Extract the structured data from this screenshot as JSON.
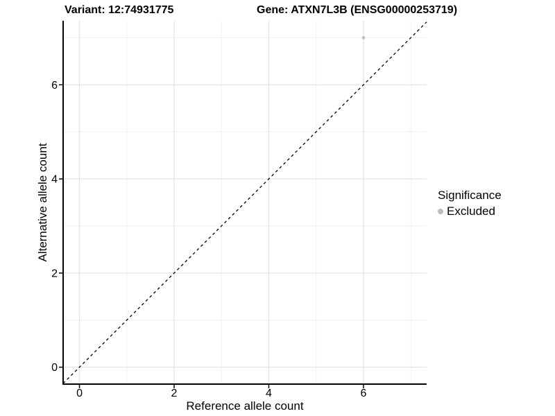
{
  "titles": {
    "left": "Variant: 12:74931775",
    "right": "Gene: ATXN7L3B (ENSG00000253719)"
  },
  "axes": {
    "x_label": "Reference allele count",
    "y_label": "Alternative allele count"
  },
  "legend": {
    "title": "Significance",
    "entries": [
      {
        "label": "Excluded",
        "color": "#bebebe"
      }
    ]
  },
  "colors": {
    "background": "#ffffff",
    "grid_major": "#e2e2e2",
    "grid_minor": "#f0f0f0",
    "axis_line": "#000000",
    "text": "#000000",
    "point": "#bebebe",
    "reference_line": "#000000"
  },
  "chart_data": {
    "type": "scatter",
    "title": "Variant: 12:74931775   Gene: ATXN7L3B (ENSG00000253719)",
    "xlabel": "Reference allele count",
    "ylabel": "Alternative allele count",
    "xlim": [
      -0.345,
      7.335
    ],
    "ylim": [
      -0.36,
      7.36
    ],
    "x_ticks": [
      0,
      2,
      4,
      6
    ],
    "y_ticks": [
      0,
      2,
      4,
      6
    ],
    "x_minor_ticks": [
      1,
      3,
      5,
      7
    ],
    "y_minor_ticks": [
      1,
      3,
      5,
      7
    ],
    "grid": true,
    "legend_position": "right",
    "series": [
      {
        "name": "Excluded",
        "color": "#bebebe",
        "points": [
          {
            "x": 6,
            "y": 7
          }
        ]
      }
    ],
    "reference_line": {
      "kind": "identity_y_equals_x",
      "style": "dashed",
      "color": "#000000"
    }
  }
}
